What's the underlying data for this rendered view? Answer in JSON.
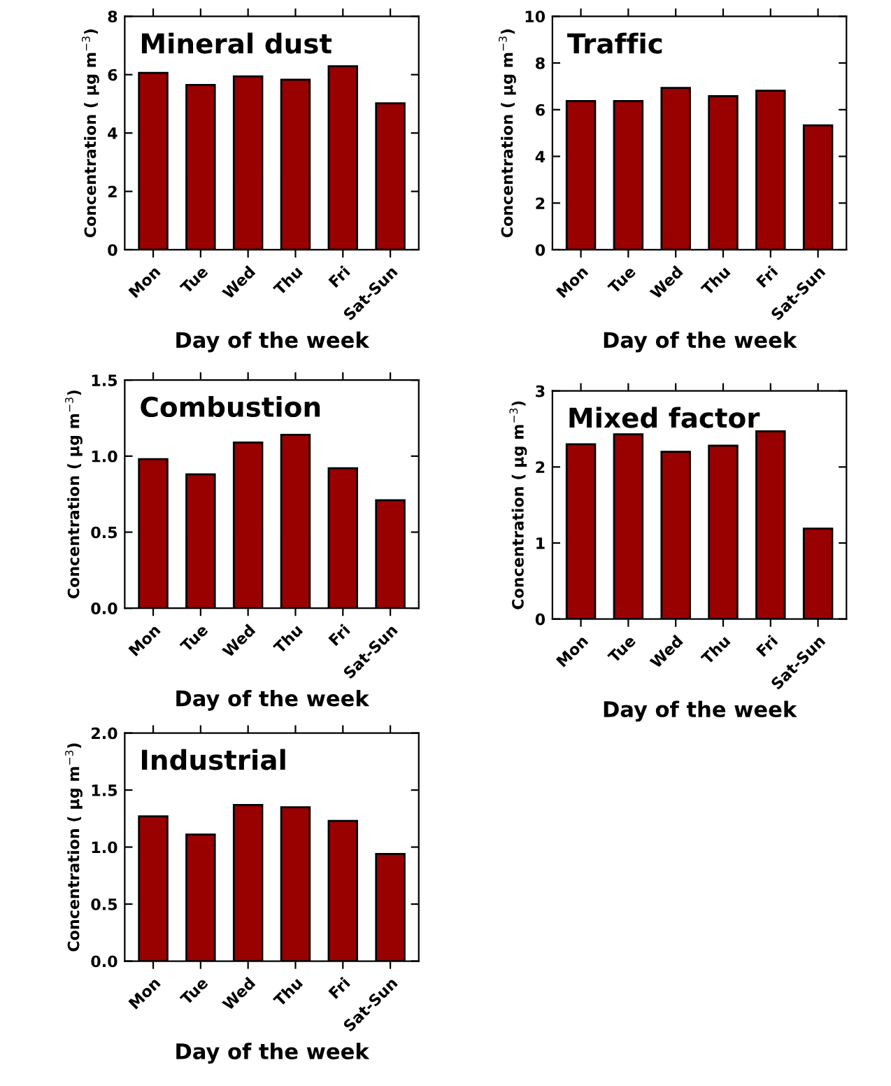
{
  "chart_data": [
    {
      "type": "bar",
      "title": "Mineral dust",
      "xlabel": "Day of the week",
      "ylabel": "Concentration ( μg m$^{−3}$)",
      "categories": [
        "Mon",
        "Tue",
        "Wed",
        "Thu",
        "Fri",
        "Sat-Sun"
      ],
      "values": [
        6.06,
        5.65,
        5.94,
        5.83,
        6.29,
        5.02
      ],
      "color": "#990000",
      "ylim": [
        0,
        8
      ],
      "yticks": [
        0,
        2,
        4,
        6,
        8
      ],
      "grid": false,
      "legend": false
    },
    {
      "type": "bar",
      "title": "Traffic",
      "xlabel": "Day of the week",
      "ylabel": "Concentration ( μg m$^{−3}$)",
      "categories": [
        "Mon",
        "Tue",
        "Wed",
        "Thu",
        "Fri",
        "Sat-Sun"
      ],
      "values": [
        6.37,
        6.37,
        6.93,
        6.58,
        6.81,
        5.33
      ],
      "color": "#990000",
      "ylim": [
        0,
        10
      ],
      "yticks": [
        0,
        2,
        4,
        6,
        8,
        10
      ],
      "grid": false,
      "legend": false
    },
    {
      "type": "bar",
      "title": "Combustion",
      "xlabel": "Day of the week",
      "ylabel": "Concentration ( μg m$^{−3}$)",
      "categories": [
        "Mon",
        "Tue",
        "Wed",
        "Thu",
        "Fri",
        "Sat-Sun"
      ],
      "values": [
        0.98,
        0.88,
        1.09,
        1.14,
        0.92,
        0.71
      ],
      "color": "#990000",
      "ylim": [
        0,
        1.5
      ],
      "yticks": [
        {
          "value": 0,
          "label": "0.0"
        },
        0.5,
        {
          "value": 1,
          "label": "1.0"
        },
        1.5
      ],
      "grid": false,
      "legend": false
    },
    {
      "type": "bar",
      "title": "Mixed factor",
      "xlabel": "Day of the week",
      "ylabel": "Concentration ( μg m$^{−3}$)",
      "categories": [
        "Mon",
        "Tue",
        "Wed",
        "Thu",
        "Fri",
        "Sat-Sun"
      ],
      "values": [
        2.3,
        2.43,
        2.2,
        2.28,
        2.47,
        1.19
      ],
      "color": "#990000",
      "ylim": [
        0,
        3
      ],
      "yticks": [
        0,
        1,
        2,
        3
      ],
      "grid": false,
      "legend": false
    },
    {
      "type": "bar",
      "title": "Industrial",
      "xlabel": "Day of the week",
      "ylabel": "Concentration ( μg m$^{−3}$)",
      "categories": [
        "Mon",
        "Tue",
        "Wed",
        "Thu",
        "Fri",
        "Sat-Sun"
      ],
      "values": [
        1.27,
        1.11,
        1.37,
        1.35,
        1.23,
        0.94
      ],
      "color": "#990000",
      "ylim": [
        0,
        2
      ],
      "yticks": [
        {
          "value": 0,
          "label": "0.0"
        },
        0.5,
        {
          "value": 1,
          "label": "1.0"
        },
        1.5,
        {
          "value": 2,
          "label": "2.0"
        }
      ],
      "grid": false,
      "legend": false
    }
  ]
}
